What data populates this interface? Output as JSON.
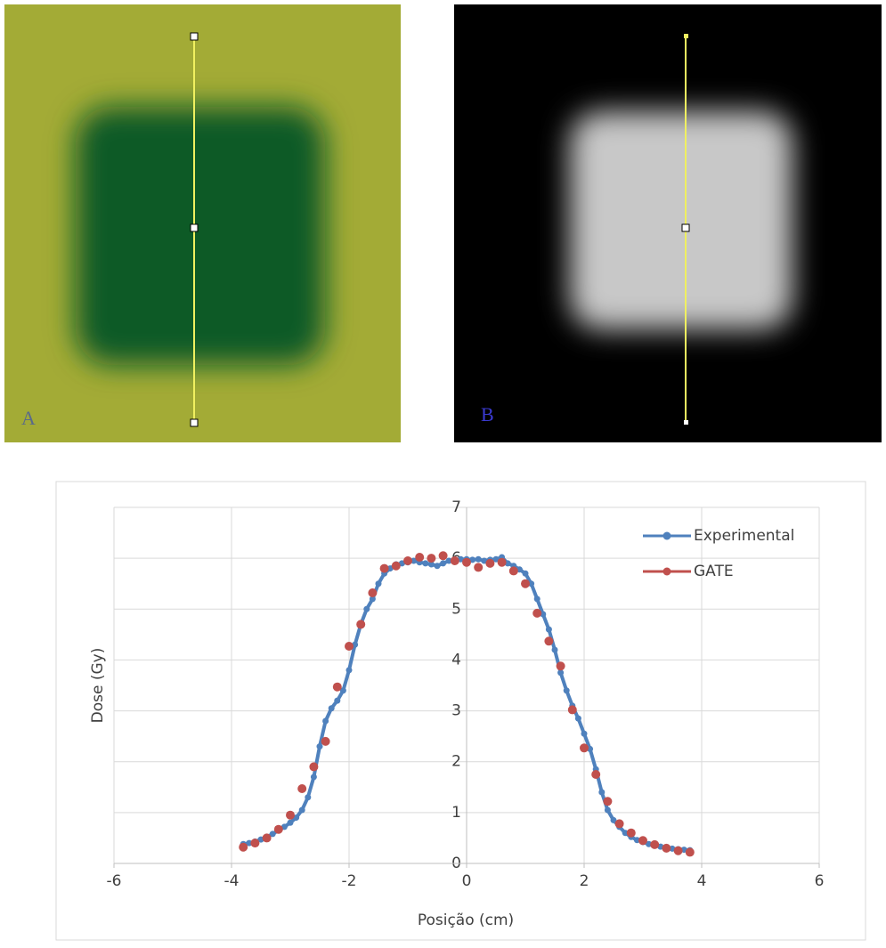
{
  "panels": [
    {
      "label": "A"
    },
    {
      "label": "B"
    }
  ],
  "chart_data": {
    "type": "line",
    "x_label": "Posição (cm)",
    "y_label": "Dose (Gy)",
    "xlim": [
      -6,
      6
    ],
    "xticks": [
      -6,
      -4,
      -2,
      0,
      2,
      4,
      6
    ],
    "ylim": [
      0,
      7
    ],
    "yticks": [
      0,
      1,
      2,
      3,
      4,
      5,
      6,
      7
    ],
    "grid": true,
    "legend": "top-right",
    "series": [
      {
        "name": "Experimental",
        "color": "#4f81bd",
        "line": true,
        "x": [
          -3.8,
          -3.7,
          -3.6,
          -3.5,
          -3.4,
          -3.3,
          -3.2,
          -3.1,
          -3.0,
          -2.9,
          -2.8,
          -2.7,
          -2.6,
          -2.5,
          -2.4,
          -2.3,
          -2.2,
          -2.1,
          -2.0,
          -1.9,
          -1.8,
          -1.7,
          -1.6,
          -1.5,
          -1.4,
          -1.3,
          -1.2,
          -1.1,
          -1.0,
          -0.9,
          -0.8,
          -0.7,
          -0.6,
          -0.5,
          -0.4,
          -0.3,
          -0.2,
          -0.1,
          0,
          0.1,
          0.2,
          0.3,
          0.4,
          0.5,
          0.6,
          0.7,
          0.8,
          0.9,
          1.0,
          1.1,
          1.2,
          1.3,
          1.4,
          1.5,
          1.6,
          1.7,
          1.8,
          1.9,
          2.0,
          2.1,
          2.2,
          2.3,
          2.4,
          2.5,
          2.6,
          2.7,
          2.8,
          2.9,
          3.0,
          3.1,
          3.2,
          3.3,
          3.4,
          3.5,
          3.6,
          3.7,
          3.8
        ],
        "values": [
          0.38,
          0.4,
          0.43,
          0.47,
          0.52,
          0.58,
          0.65,
          0.72,
          0.8,
          0.9,
          1.05,
          1.3,
          1.7,
          2.3,
          2.8,
          3.05,
          3.2,
          3.4,
          3.8,
          4.3,
          4.7,
          5.0,
          5.2,
          5.5,
          5.7,
          5.8,
          5.88,
          5.9,
          5.92,
          5.95,
          5.92,
          5.9,
          5.88,
          5.85,
          5.9,
          5.95,
          5.97,
          5.98,
          5.98,
          5.97,
          5.98,
          5.95,
          5.97,
          5.98,
          6.02,
          5.9,
          5.85,
          5.78,
          5.7,
          5.5,
          5.2,
          4.9,
          4.6,
          4.2,
          3.75,
          3.4,
          3.1,
          2.85,
          2.55,
          2.25,
          1.85,
          1.4,
          1.05,
          0.85,
          0.72,
          0.6,
          0.52,
          0.46,
          0.42,
          0.38,
          0.35,
          0.33,
          0.31,
          0.29,
          0.28,
          0.27,
          0.26
        ]
      },
      {
        "name": "GATE",
        "color": "#c0504d",
        "line": false,
        "x": [
          -3.8,
          -3.6,
          -3.4,
          -3.2,
          -3.0,
          -2.8,
          -2.6,
          -2.4,
          -2.2,
          -2.0,
          -1.8,
          -1.6,
          -1.4,
          -1.2,
          -1.0,
          -0.8,
          -0.6,
          -0.4,
          -0.2,
          0,
          0.2,
          0.4,
          0.6,
          0.8,
          1.0,
          1.2,
          1.4,
          1.6,
          1.8,
          2.0,
          2.2,
          2.4,
          2.6,
          2.8,
          3.0,
          3.2,
          3.4,
          3.6,
          3.8
        ],
        "values": [
          0.32,
          0.4,
          0.5,
          0.67,
          0.95,
          1.47,
          1.9,
          2.4,
          3.47,
          4.27,
          4.7,
          5.32,
          5.8,
          5.85,
          5.95,
          6.02,
          6.0,
          6.05,
          5.95,
          5.92,
          5.82,
          5.9,
          5.92,
          5.75,
          5.5,
          4.92,
          4.37,
          3.88,
          3.02,
          2.27,
          1.75,
          1.22,
          0.78,
          0.6,
          0.45,
          0.37,
          0.3,
          0.25,
          0.22
        ]
      }
    ]
  }
}
